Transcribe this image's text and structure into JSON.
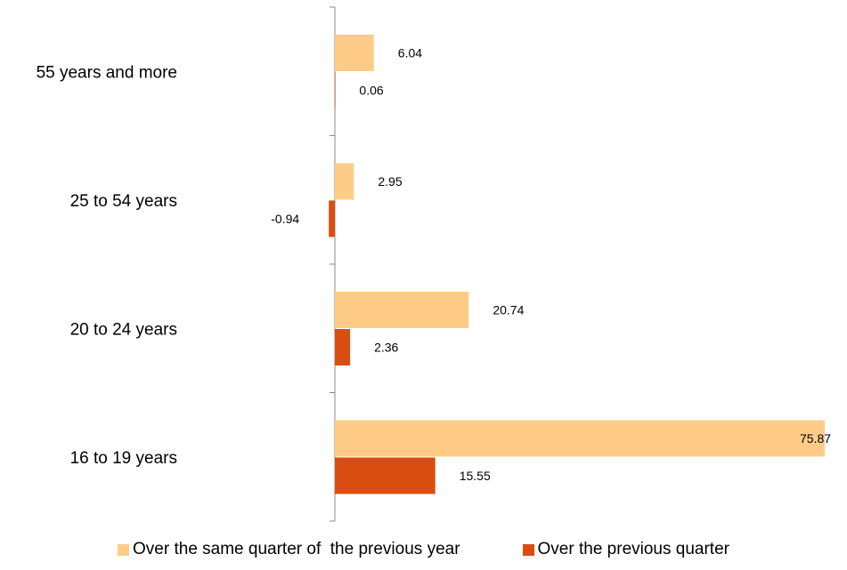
{
  "chart_data": {
    "type": "bar",
    "orientation": "horizontal",
    "categories": [
      "55 years and more",
      "25 to 54 years",
      "20 to 24 years",
      "16 to 19 years"
    ],
    "series": [
      {
        "name": "Over the same quarter of  the previous year",
        "values": [
          6.04,
          2.95,
          20.74,
          75.87
        ],
        "labels": [
          "6.04",
          "2.95",
          "20.74",
          "75.87"
        ],
        "color": "#FFCC88"
      },
      {
        "name": "Over the previous quarter",
        "values": [
          0.06,
          -0.94,
          2.36,
          15.55
        ],
        "labels": [
          "0.06",
          "-0.94",
          "2.36",
          "15.55"
        ],
        "color": "#D94E10"
      }
    ],
    "title": "",
    "xlabel": "",
    "ylabel": "",
    "xlim": [
      -0.94,
      75.87
    ],
    "grid": false,
    "legend_position": "bottom"
  }
}
